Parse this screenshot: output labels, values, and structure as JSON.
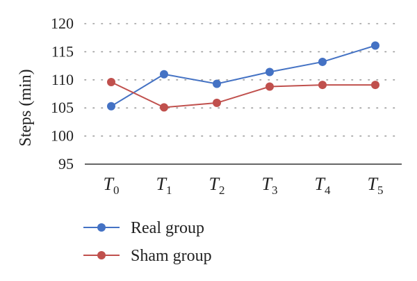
{
  "chart_data": {
    "type": "line",
    "ylabel": "Steps (min)",
    "ylim": [
      95,
      120
    ],
    "y_ticks": [
      "95",
      "100",
      "105",
      "110",
      "115",
      "120"
    ],
    "categories": [
      {
        "base": "T",
        "sub": "0"
      },
      {
        "base": "T",
        "sub": "1"
      },
      {
        "base": "T",
        "sub": "2"
      },
      {
        "base": "T",
        "sub": "3"
      },
      {
        "base": "T",
        "sub": "4"
      },
      {
        "base": "T",
        "sub": "5"
      }
    ],
    "grid": true,
    "legend_position": "bottom-left",
    "series": [
      {
        "name": "Real group",
        "color": "#4472C4",
        "values": [
          105.3,
          111.0,
          109.3,
          111.4,
          113.2,
          116.1
        ]
      },
      {
        "name": "Sham group",
        "color": "#C0504D",
        "values": [
          109.6,
          105.1,
          105.9,
          108.8,
          109.1,
          109.1
        ]
      }
    ]
  }
}
